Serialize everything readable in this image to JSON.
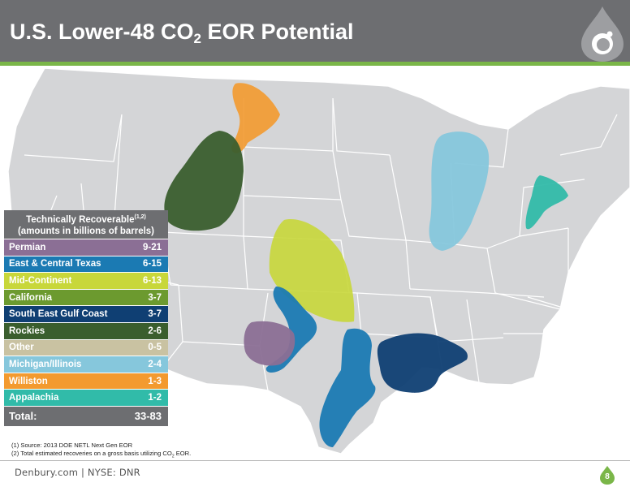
{
  "header": {
    "title_prefix": "U.S. Lower-48 CO",
    "title_sub": "2",
    "title_suffix": " EOR Potential"
  },
  "legend": {
    "header_line1": "Technically Recoverable",
    "header_sup": "(1,2)",
    "header_line2": "(amounts in billions of barrels)",
    "rows": [
      {
        "label": "Permian",
        "value": "9-21",
        "color": "#8b6f95"
      },
      {
        "label": "East & Central Texas",
        "value": "6-15",
        "color": "#1b7ab3"
      },
      {
        "label": "Mid-Continent",
        "value": "6-13",
        "color": "#c8d73a"
      },
      {
        "label": "California",
        "value": "3-7",
        "color": "#6c9a2f"
      },
      {
        "label": "South East Gulf Coast",
        "value": "3-7",
        "color": "#0f3f73"
      },
      {
        "label": "Rockies",
        "value": "2-6",
        "color": "#3a5e2e"
      },
      {
        "label": "Other",
        "value": "0-5",
        "color": "#c9c2a2"
      },
      {
        "label": "Michigan/Illinois",
        "value": "2-4",
        "color": "#86c7dc"
      },
      {
        "label": "Williston",
        "value": "1-3",
        "color": "#f39a2f"
      },
      {
        "label": "Appalachia",
        "value": "1-2",
        "color": "#31bba9"
      }
    ],
    "total_label": "Total:",
    "total_value": "33-83"
  },
  "footnotes": {
    "note1": "(1) Source: 2013 DOE NETL Next Gen EOR",
    "note2_prefix": "(2) Total estimated recoveries on a gross basis utilizing CO",
    "note2_sub": "2",
    "note2_suffix": " EOR."
  },
  "footer": {
    "brand": "Denbury.com  |  NYSE: DNR",
    "page": "8"
  },
  "colors": {
    "header": "#6d6e71",
    "accent": "#7ab648",
    "map_fill": "#d4d5d7"
  },
  "icons": {
    "logo": "denbury-drop-logo",
    "badge": "drop-badge-icon"
  }
}
